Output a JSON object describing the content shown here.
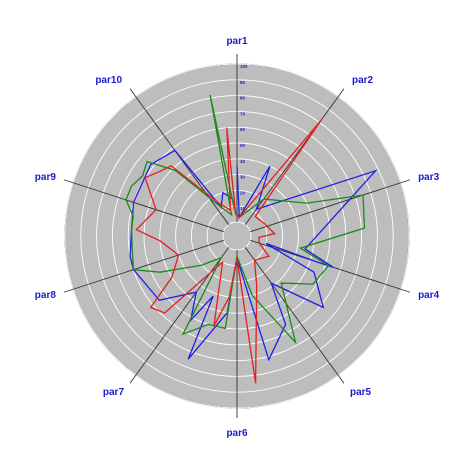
{
  "chart_data": {
    "type": "radar",
    "axes": [
      "par1",
      "par2",
      "par3",
      "par4",
      "par5",
      "par6",
      "par7",
      "par8",
      "par9",
      "par10"
    ],
    "rlim": [
      0,
      100
    ],
    "rings": [
      10,
      20,
      30,
      40,
      50,
      60,
      70,
      80,
      90,
      100
    ],
    "tick_labels": [
      "10",
      "20",
      "30",
      "40",
      "50",
      "60",
      "70",
      "80",
      "90",
      "100"
    ],
    "grid": true,
    "legend": "none",
    "series": [
      {
        "color": "#1f1fe6",
        "r": [
          35,
          2,
          12,
          88,
          35,
          55,
          45,
          42,
          45,
          60,
          28,
          70,
          40,
          65,
          35,
          78,
          5,
          10,
          2,
          35,
          15,
          8,
          55,
          38,
          75,
          30,
          58,
          55,
          15,
          30,
          55,
          58,
          60,
          55,
          40,
          8,
          35,
          50,
          60,
          60,
          30
        ],
        "theta_start": 0
      },
      {
        "color": "#1a8a1a",
        "r": [
          85,
          8,
          30,
          55,
          75,
          30,
          55,
          60,
          48,
          70,
          45,
          68,
          30,
          85,
          35,
          65,
          20,
          60,
          2,
          35,
          8,
          10,
          25,
          62,
          45,
          58,
          25,
          55,
          15,
          48,
          45,
          58,
          55,
          58,
          15,
          48,
          60,
          40,
          35,
          62,
          60
        ],
        "theta_start": 0
      },
      {
        "color": "#e61f1f",
        "r": [
          60,
          5,
          82,
          10,
          8,
          15,
          30,
          10,
          20,
          25,
          48,
          18,
          85,
          10,
          25,
          30,
          10,
          62,
          18,
          50,
          12,
          10,
          55,
          45,
          50,
          62,
          25,
          58,
          35,
          40,
          62,
          55,
          18,
          55,
          30,
          60,
          12,
          35,
          60,
          60,
          5
        ],
        "theta_start": 0
      }
    ]
  }
}
